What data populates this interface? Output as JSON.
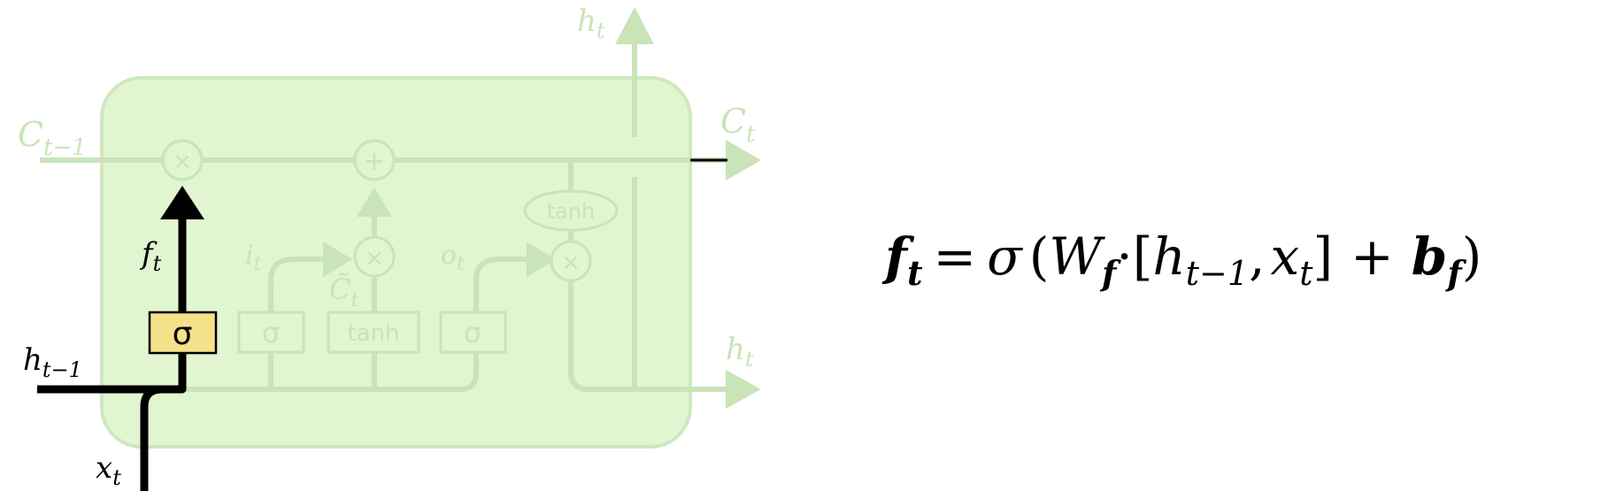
{
  "colors": {
    "cell_fill": "#e0f5d0",
    "cell_stroke": "#cfe8bf",
    "faded": "#c8e4b8",
    "highlight": "#000000",
    "gate_box": "#f5e08c"
  },
  "labels": {
    "c_prev": {
      "main": "C",
      "sub": "t−1"
    },
    "c_out": {
      "main": "C",
      "sub": "t"
    },
    "h_top": {
      "main": "h",
      "sub": "t"
    },
    "h_right": {
      "main": "h",
      "sub": "t"
    },
    "h_prev": {
      "main": "h",
      "sub": "t−1"
    },
    "x_in": {
      "main": "x",
      "sub": "t"
    },
    "f_t": {
      "main": "f",
      "sub": "t"
    },
    "i_t": {
      "main": "i",
      "sub": "t"
    },
    "c_tilde": {
      "main": "C̃",
      "sub": "t"
    },
    "o_t": {
      "main": "o",
      "sub": "t"
    }
  },
  "gates": {
    "forget_sigma": "σ",
    "input_sigma": "σ",
    "candidate_tanh": "tanh",
    "output_sigma": "σ",
    "cell_tanh": "tanh"
  },
  "ops": {
    "multiply": "×",
    "add": "+"
  },
  "equation": {
    "lhs": "f",
    "lhs_sub": "t",
    "eq": "=",
    "sigma": "σ",
    "open": "(",
    "W": "W",
    "W_sub": "f",
    "dot": "·",
    "lbracket": "[",
    "h": "h",
    "h_sub": "t−1",
    "comma": ",",
    "x": "x",
    "x_sub": "t",
    "rbracket": "]",
    "plus": "+",
    "b": "b",
    "b_sub": "f",
    "close": ")"
  }
}
